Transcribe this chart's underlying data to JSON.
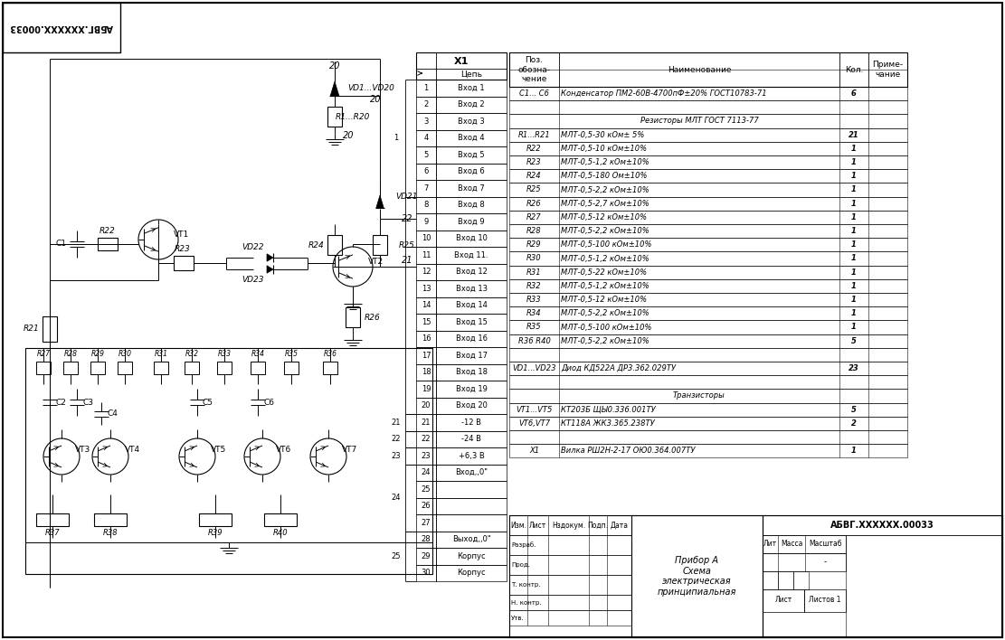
{
  "bg_color": "#ffffff",
  "line_color": "#000000",
  "bom_rows": [
    [
      "C1... C6",
      "Конденсатор ПМ2-60В-4700пФ±20% ГОСТ10783-71",
      "6",
      ""
    ],
    [
      "",
      "",
      "",
      ""
    ],
    [
      "",
      "Резисторы МЛТ ГОСТ 7113-77",
      "",
      ""
    ],
    [
      "R1...R21",
      "МЛТ-0,5-30 кОм± 5%",
      "21",
      ""
    ],
    [
      "R22",
      "МЛТ-0,5-10 кОм±10%",
      "1",
      ""
    ],
    [
      "R23",
      "МЛТ-0,5-1,2 кОм±10%",
      "1",
      ""
    ],
    [
      "R24",
      "МЛТ-0,5-180 Ом±10%",
      "1",
      ""
    ],
    [
      "R25",
      "МЛТ-0,5-2,2 кОм±10%",
      "1",
      ""
    ],
    [
      "R26",
      "МЛТ-0,5-2,7 кОм±10%",
      "1",
      ""
    ],
    [
      "R27",
      "МЛТ-0,5-12 кОм±10%",
      "1",
      ""
    ],
    [
      "R28",
      "МЛТ-0,5-2,2 кОм±10%",
      "1",
      ""
    ],
    [
      "R29",
      "МЛТ-0,5-100 кОм±10%",
      "1",
      ""
    ],
    [
      "R30",
      "МЛТ-0,5-1,2 кОм±10%",
      "1",
      ""
    ],
    [
      "R31",
      "МЛТ-0,5-22 кОм±10%",
      "1",
      ""
    ],
    [
      "R32",
      "МЛТ-0,5-1,2 кОм±10%",
      "1",
      ""
    ],
    [
      "R33",
      "МЛТ-0,5-12 кОм±10%",
      "1",
      ""
    ],
    [
      "R34",
      "МЛТ-0,5-2,2 кОм±10%",
      "1",
      ""
    ],
    [
      "R35",
      "МЛТ-0,5-100 кОм±10%",
      "1",
      ""
    ],
    [
      "R36 R40",
      "МЛТ-0,5-2,2 кОм±10%",
      "5",
      ""
    ],
    [
      "",
      "",
      "",
      ""
    ],
    [
      "VD1...VD23",
      "Диод КД522А ДР3.362.029ТУ",
      "23",
      ""
    ],
    [
      "",
      "",
      "",
      ""
    ],
    [
      "",
      "Транзисторы",
      "",
      ""
    ],
    [
      "VT1...VT5",
      "КТ203Б ЩЫ0.336.001ТУ",
      "5",
      ""
    ],
    [
      "VT6,VT7",
      "КТ118А ЖК3.365.238ТУ",
      "2",
      ""
    ],
    [
      "",
      "",
      "",
      ""
    ],
    [
      "X1",
      "Вилка РШ2Н-2-17 ОЮ0.364.007ТУ",
      "1",
      ""
    ]
  ],
  "connector_rows": [
    [
      "1",
      "Вход 1"
    ],
    [
      "2",
      "Вход 2"
    ],
    [
      "3",
      "Вход 3"
    ],
    [
      "4",
      "Вход 4"
    ],
    [
      "5",
      "Вход 5"
    ],
    [
      "6",
      "Вход 6"
    ],
    [
      "7",
      "Вход 7"
    ],
    [
      "8",
      "Вход 8"
    ],
    [
      "9",
      "Вход 9"
    ],
    [
      "10",
      "Вход 10"
    ],
    [
      "11",
      "Вход 11."
    ],
    [
      "12",
      "Вход 12"
    ],
    [
      "13",
      "Вход 13"
    ],
    [
      "14",
      "Вход 14"
    ],
    [
      "15",
      "Вход 15"
    ],
    [
      "16",
      "Вход 16"
    ],
    [
      "17",
      "Вход 17"
    ],
    [
      "18",
      "Вход 18"
    ],
    [
      "19",
      "Вход 19"
    ],
    [
      "20",
      "Вход 20"
    ],
    [
      "21",
      "-12 В"
    ],
    [
      "22",
      "-24 В"
    ],
    [
      "23",
      "+6,3 В"
    ],
    [
      "24",
      "Вход,,0\""
    ],
    [
      "25",
      ""
    ],
    [
      "26",
      ""
    ],
    [
      "27",
      ""
    ],
    [
      "28",
      "Выход,,0\""
    ],
    [
      "29",
      "Корпус"
    ],
    [
      "30",
      "Корпус"
    ]
  ],
  "title_stamp": "АБВГ.XXXXXX.00033",
  "device_name": "Прибор А\nСхема\nэлектрическая\nпринципиальная",
  "stamp_headers": [
    "Изм.",
    "Лист",
    "Нздокум.",
    "Подп.",
    "Дата"
  ],
  "stamp_rows": [
    "Разраб.",
    "Прод.",
    "Т. контр.",
    "Н. контр.",
    "Утв."
  ]
}
